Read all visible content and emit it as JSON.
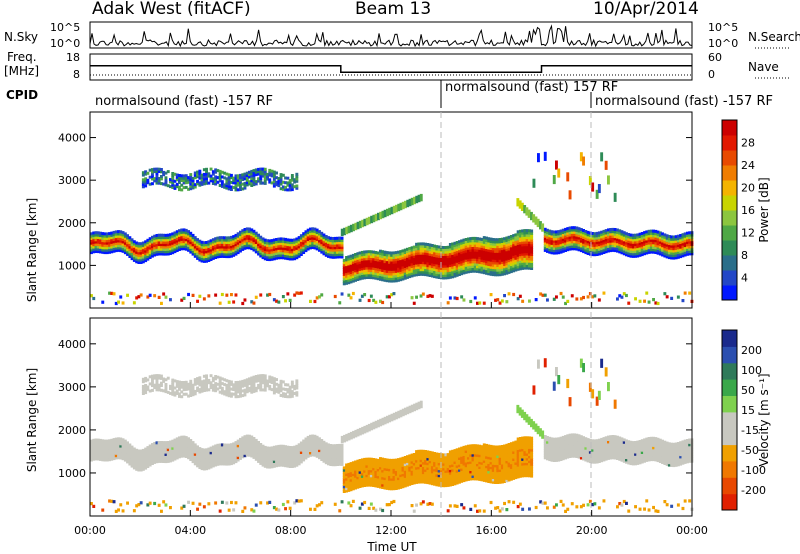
{
  "header": {
    "station": "Adak West (fitACF)",
    "beam": "Beam 13",
    "date": "10/Apr/2014"
  },
  "sky_panel": {
    "left_label": "N.Sky",
    "left_ticks": [
      "10^5",
      "10^0"
    ],
    "right_ticks": [
      "10^5",
      "10^0"
    ],
    "right_label": "N.Search",
    "right_style": "dotted"
  },
  "freq_panel": {
    "left_label_1": "Freq.",
    "left_label_2": "[MHz]",
    "left_ticks": [
      "18",
      "8"
    ],
    "right_ticks": [
      "60",
      "0"
    ],
    "right_label": "Nave",
    "right_style": "dotted",
    "freq_profile": [
      [
        0,
        13.5
      ],
      [
        10.0,
        13.5
      ],
      [
        10.0,
        11.0
      ],
      [
        18.0,
        11.0
      ],
      [
        18.0,
        13.5
      ],
      [
        24.0,
        13.5
      ]
    ]
  },
  "cpid": {
    "label": "CPID",
    "segments": [
      {
        "text": "normalsound (fast) -157 RF",
        "start": 0
      },
      {
        "text": "normalsound (fast) 157 RF",
        "start": 14
      },
      {
        "text": "normalsound (fast) -157 RF",
        "start": 20
      }
    ]
  },
  "chart_data": [
    {
      "type": "heatmap",
      "title": "Power",
      "ylabel": "Slant Range [km]",
      "xlabel": "Time UT",
      "xlim_hours": [
        0,
        24
      ],
      "ylim_km": [
        0,
        4600
      ],
      "y_ticks": [
        "1000",
        "2000",
        "3000",
        "4000"
      ],
      "colorbar": {
        "label": "Power [dB]",
        "ticks": [
          "4",
          "8",
          "12",
          "16",
          "20",
          "24",
          "28"
        ],
        "colors": [
          "#0018ff",
          "#2347c7",
          "#2a6e8a",
          "#2e8b57",
          "#4fa845",
          "#8cc63f",
          "#c8d400",
          "#f4b400",
          "#f07d00",
          "#e84a00",
          "#e21800",
          "#cc0000"
        ]
      },
      "description_features": [
        {
          "t0": 0.0,
          "t1": 10.0,
          "range_center_km": 1450,
          "comment": "strong band"
        },
        {
          "t0": 2.0,
          "t1": 8.0,
          "range_center_km": 3000,
          "comment": "weak band"
        },
        {
          "t0": 10.0,
          "t1": 17.5,
          "range_center_km": 1000,
          "comment": "strong rising band"
        },
        {
          "t0": 18.0,
          "t1": 24.0,
          "range_center_km": 1450,
          "comment": "band"
        }
      ]
    },
    {
      "type": "heatmap",
      "title": "Velocity",
      "ylabel": "Slant Range [km]",
      "xlabel": "Time UT",
      "xlim_hours": [
        0,
        24
      ],
      "ylim_km": [
        0,
        4600
      ],
      "y_ticks": [
        "1000",
        "2000",
        "3000",
        "4000"
      ],
      "colorbar": {
        "label": "Velocity [m s⁻¹]",
        "ticks": [
          "200",
          "100",
          "50",
          "15",
          "-15",
          "-50",
          "-100",
          "-200"
        ],
        "colors": [
          "#1a2a8c",
          "#2b4fb0",
          "#2f7a5a",
          "#3aa84a",
          "#7fd14e",
          "#c8c8c0",
          "#c8c8c0",
          "#f0a000",
          "#f07800",
          "#e84800",
          "#e02000"
        ]
      }
    }
  ],
  "x_axis": {
    "ticks": [
      "00:00",
      "04:00",
      "08:00",
      "12:00",
      "16:00",
      "20:00",
      "00:00"
    ],
    "label": "Time UT"
  }
}
